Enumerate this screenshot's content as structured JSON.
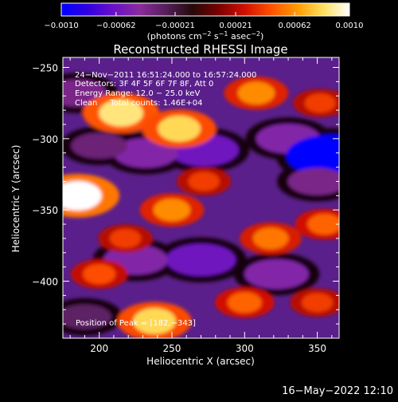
{
  "chart_data": {
    "type": "heatmap",
    "title": "Reconstructed RHESSI Image",
    "xlabel": "Heliocentric X (arcsec)",
    "ylabel": "Heliocentric Y (arcsec)",
    "xlim": [
      175,
      365
    ],
    "ylim": [
      -440,
      -243
    ],
    "x_ticks": [
      200,
      250,
      300,
      350
    ],
    "y_ticks": [
      -250,
      -300,
      -350,
      -400
    ],
    "x_tick_labels": [
      "200",
      "250",
      "300",
      "350"
    ],
    "y_tick_labels": [
      "−250",
      "−300",
      "−350",
      "−400"
    ],
    "grid": false,
    "colorbar": {
      "min": -0.001,
      "max": 0.001,
      "ticks": [
        -0.001,
        -0.00062,
        -0.00021,
        0.00021,
        0.00062,
        0.001
      ],
      "tick_labels": [
        "−0.0010",
        "−0.00062",
        "−0.00021",
        "0.00021",
        "0.00062",
        "0.0010"
      ],
      "label_main": "(photons cm",
      "label_exp1": "−2",
      "label_mid1": " s",
      "label_exp2": "−1",
      "label_mid2": " asec",
      "label_exp3": "−2",
      "label_end": ")",
      "colors": [
        "#0000ff",
        "#3000e0",
        "#6a10c8",
        "#8a2c9c",
        "#551e5a",
        "#250a0a",
        "#7a0000",
        "#d01000",
        "#ff5000",
        "#ff9a00",
        "#ffe060",
        "#ffffff"
      ]
    },
    "info_lines": [
      "24−Nov−2011 16:51:24.000 to 16:57:24.000",
      "Detectors: 3F 4F 5F 6F 7F 8F, Att 0",
      "Energy Range: 12.0 − 25.0 keV",
      "Clean     Total counts: 1.46E+04"
    ],
    "peak_text": "Position of Peak = [182,−343]",
    "bright_blobs": [
      {
        "x": 185,
        "y": -340,
        "value": 0.001
      },
      {
        "x": 215,
        "y": -282,
        "value": 0.00085
      },
      {
        "x": 255,
        "y": -293,
        "value": 0.0008
      },
      {
        "x": 308,
        "y": -268,
        "value": 0.0006
      },
      {
        "x": 352,
        "y": -275,
        "value": 0.0004
      },
      {
        "x": 250,
        "y": -350,
        "value": 0.0006
      },
      {
        "x": 218,
        "y": -370,
        "value": 0.0004
      },
      {
        "x": 318,
        "y": -370,
        "value": 0.00055
      },
      {
        "x": 355,
        "y": -360,
        "value": 0.0005
      },
      {
        "x": 200,
        "y": -395,
        "value": 0.00045
      },
      {
        "x": 238,
        "y": -428,
        "value": 0.0008
      },
      {
        "x": 300,
        "y": -415,
        "value": 0.0005
      },
      {
        "x": 350,
        "y": -415,
        "value": 0.0004
      },
      {
        "x": 272,
        "y": -330,
        "value": 0.0004
      }
    ],
    "dark_blobs": [
      {
        "x": 272,
        "y": -308,
        "value": -0.0006
      },
      {
        "x": 232,
        "y": -310,
        "value": -0.0005
      },
      {
        "x": 330,
        "y": -300,
        "value": -0.0005
      },
      {
        "x": 360,
        "y": -312,
        "value": -0.001
      },
      {
        "x": 185,
        "y": -268,
        "value": -0.0004
      },
      {
        "x": 200,
        "y": -305,
        "value": -0.00035
      },
      {
        "x": 270,
        "y": -385,
        "value": -0.0006
      },
      {
        "x": 225,
        "y": -385,
        "value": -0.0005
      },
      {
        "x": 322,
        "y": -395,
        "value": -0.0005
      },
      {
        "x": 350,
        "y": -330,
        "value": -0.0004
      },
      {
        "x": 190,
        "y": -425,
        "value": -0.0003
      }
    ]
  },
  "footer": {
    "date": "16−May−2022 12:10"
  }
}
